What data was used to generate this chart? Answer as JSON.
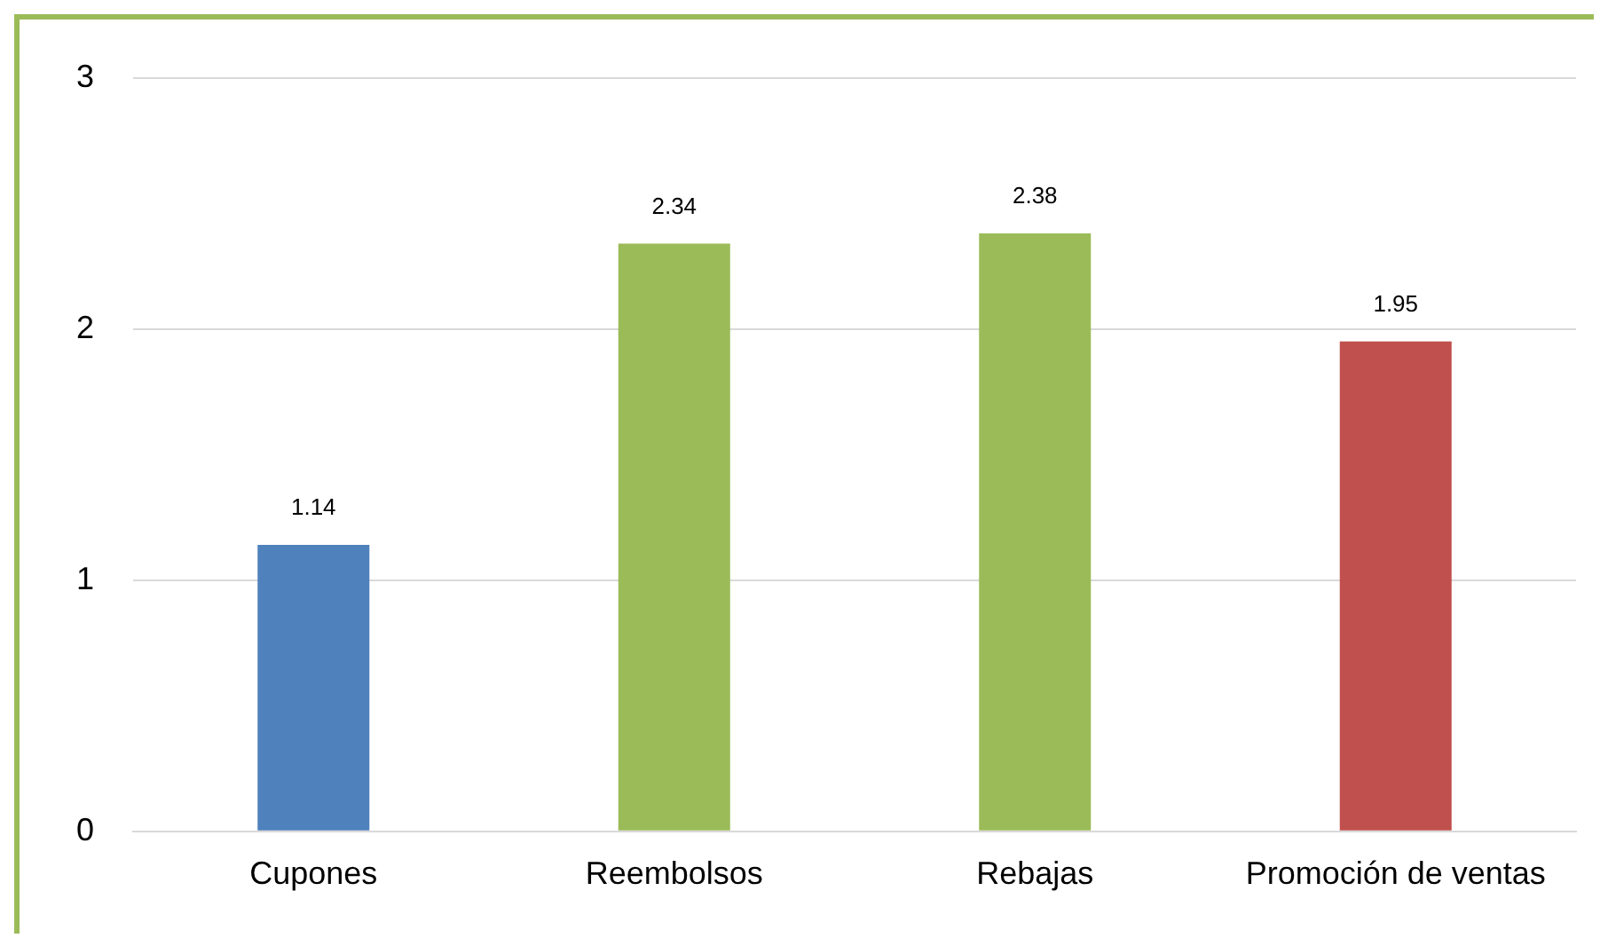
{
  "chart_data": {
    "type": "bar",
    "categories": [
      "Cupones",
      "Reembolsos",
      "Rebajas",
      "Promoción de ventas"
    ],
    "values": [
      1.14,
      2.34,
      2.38,
      1.95
    ],
    "colors": [
      "#4f81bd",
      "#9bbb59",
      "#9bbb59",
      "#c0504d"
    ],
    "ylim": [
      0,
      3
    ],
    "yticks": [
      0,
      1,
      2,
      3
    ],
    "grid": "y",
    "data_labels": true
  }
}
